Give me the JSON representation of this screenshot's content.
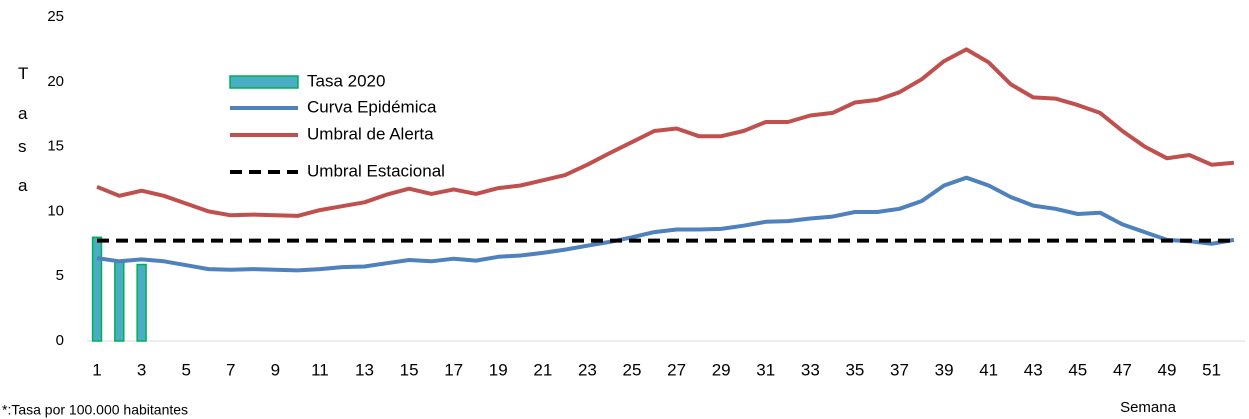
{
  "chart_data": {
    "type": "line",
    "y_label": "Tasa",
    "x_label": "Semana",
    "footnote": "*:Tasa por 100.000 habitantes",
    "x": [
      1,
      2,
      3,
      4,
      5,
      6,
      7,
      8,
      9,
      10,
      11,
      12,
      13,
      14,
      15,
      16,
      17,
      18,
      19,
      20,
      21,
      22,
      23,
      24,
      25,
      26,
      27,
      28,
      29,
      30,
      31,
      32,
      33,
      34,
      35,
      36,
      37,
      38,
      39,
      40,
      41,
      42,
      43,
      44,
      45,
      46,
      47,
      48,
      49,
      50,
      51,
      52
    ],
    "xlim": [
      0.55,
      52.5
    ],
    "xticks": [
      1,
      3,
      5,
      7,
      9,
      11,
      13,
      15,
      17,
      19,
      21,
      23,
      25,
      27,
      29,
      31,
      33,
      35,
      37,
      39,
      41,
      43,
      45,
      47,
      49,
      51
    ],
    "ylim": [
      0,
      25
    ],
    "yticks": [
      0,
      5,
      10,
      15,
      20,
      25
    ],
    "grid": false,
    "series": [
      {
        "name": "Tasa 2020",
        "kind": "bar",
        "color": "#4bacc6",
        "edge_color": "#00b050",
        "values": [
          8.0,
          6.2,
          5.9,
          null,
          null,
          null,
          null,
          null,
          null,
          null,
          null,
          null,
          null,
          null,
          null,
          null,
          null,
          null,
          null,
          null,
          null,
          null,
          null,
          null,
          null,
          null,
          null,
          null,
          null,
          null,
          null,
          null,
          null,
          null,
          null,
          null,
          null,
          null,
          null,
          null,
          null,
          null,
          null,
          null,
          null,
          null,
          null,
          null,
          null,
          null,
          null,
          null
        ]
      },
      {
        "name": "Curva Epidémica",
        "kind": "line",
        "color": "#4f81bd",
        "values": [
          6.4,
          6.15,
          6.3,
          6.15,
          5.85,
          5.55,
          5.5,
          5.55,
          5.5,
          5.45,
          5.55,
          5.7,
          5.75,
          6.0,
          6.25,
          6.15,
          6.35,
          6.2,
          6.5,
          6.6,
          6.8,
          7.05,
          7.35,
          7.65,
          8.0,
          8.4,
          8.6,
          8.6,
          8.65,
          8.9,
          9.2,
          9.25,
          9.45,
          9.6,
          9.95,
          9.95,
          10.2,
          10.8,
          12.0,
          12.6,
          12.0,
          11.1,
          10.45,
          10.2,
          9.8,
          9.9,
          9.0,
          8.4,
          7.8,
          7.7,
          7.5,
          7.8
        ]
      },
      {
        "name": "Umbral de Alerta",
        "kind": "line",
        "color": "#c0504d",
        "values": [
          11.9,
          11.2,
          11.6,
          11.2,
          10.6,
          10.0,
          9.7,
          9.75,
          9.7,
          9.65,
          10.1,
          10.4,
          10.7,
          11.3,
          11.75,
          11.35,
          11.7,
          11.35,
          11.8,
          12.0,
          12.4,
          12.8,
          13.6,
          14.5,
          15.35,
          16.2,
          16.4,
          15.8,
          15.8,
          16.2,
          16.9,
          16.9,
          17.4,
          17.6,
          18.4,
          18.6,
          19.2,
          20.2,
          21.6,
          22.5,
          21.5,
          19.8,
          18.8,
          18.7,
          18.2,
          17.6,
          16.2,
          15.0,
          14.1,
          14.35,
          13.6,
          13.75
        ]
      },
      {
        "name": "Umbral Estacional",
        "kind": "dashed",
        "color": "#000000",
        "values": [
          7.75,
          7.75,
          7.75,
          7.75,
          7.75,
          7.75,
          7.75,
          7.75,
          7.75,
          7.75,
          7.75,
          7.75,
          7.75,
          7.75,
          7.75,
          7.75,
          7.75,
          7.75,
          7.75,
          7.75,
          7.75,
          7.75,
          7.75,
          7.75,
          7.75,
          7.75,
          7.75,
          7.75,
          7.75,
          7.75,
          7.75,
          7.75,
          7.75,
          7.75,
          7.75,
          7.75,
          7.75,
          7.75,
          7.75,
          7.75,
          7.75,
          7.75,
          7.75,
          7.75,
          7.75,
          7.75,
          7.75,
          7.75,
          7.75,
          7.75,
          7.75,
          7.75
        ]
      }
    ]
  }
}
